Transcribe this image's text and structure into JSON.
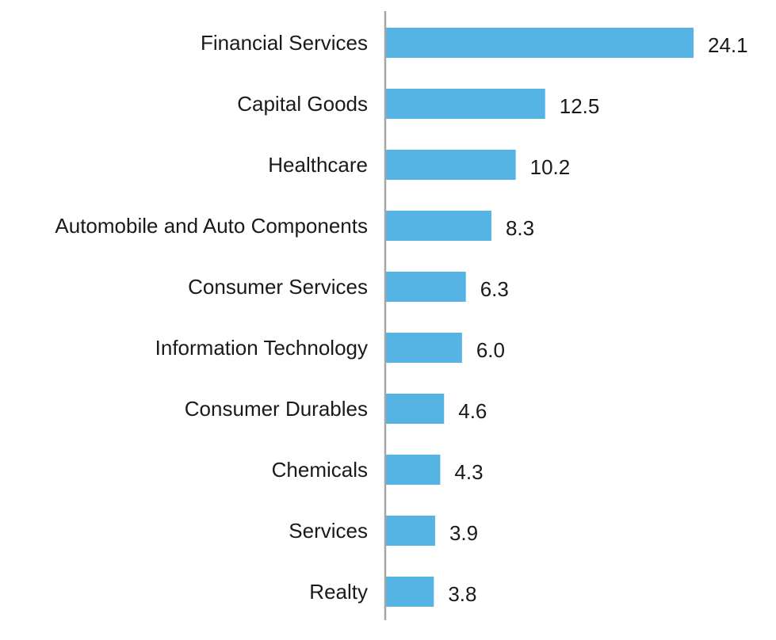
{
  "chart_data": {
    "type": "bar",
    "orientation": "horizontal",
    "categories": [
      "Financial Services",
      "Capital Goods",
      "Healthcare",
      "Automobile and Auto Components",
      "Consumer Services",
      "Information Technology",
      "Consumer Durables",
      "Chemicals",
      "Services",
      "Realty"
    ],
    "values": [
      24.1,
      12.5,
      10.2,
      8.3,
      6.3,
      6.0,
      4.6,
      4.3,
      3.9,
      3.8
    ],
    "value_labels": [
      "24.1",
      "12.5",
      "10.2",
      "8.3",
      "6.3",
      "6.0",
      "4.6",
      "4.3",
      "3.9",
      "3.8"
    ],
    "title": "",
    "xlabel": "",
    "ylabel": "",
    "xlim": [
      0,
      24.1
    ],
    "grid": false,
    "legend": "none",
    "bar_color": "#56B4E5",
    "axis_color": "#a6a6a6"
  }
}
